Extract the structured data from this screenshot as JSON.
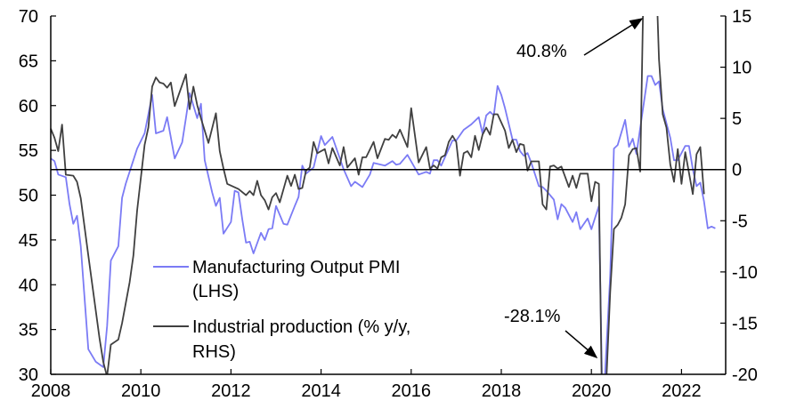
{
  "chart_data": {
    "type": "line",
    "title": "",
    "xlabel": "",
    "ylabel_left": "",
    "ylabel_right": "",
    "xlim": [
      "2008-01",
      "2022-12"
    ],
    "ylim_left": [
      30,
      70
    ],
    "ylim_right": [
      -20,
      15
    ],
    "x_ticks": [
      "2008",
      "2010",
      "2012",
      "2014",
      "2016",
      "2018",
      "2020",
      "2022"
    ],
    "y_ticks_left": [
      "70",
      "65",
      "60",
      "55",
      "50",
      "45",
      "40",
      "35",
      "30"
    ],
    "y_ticks_right": [
      "15",
      "10",
      "5",
      "0",
      "-5",
      "-10",
      "-15",
      "-20"
    ],
    "grid": false,
    "zero_line_right_axis": true,
    "legend_position": "bottom-left",
    "series": [
      {
        "name": "Manufacturing Output PMI (LHS)",
        "legend_lines": [
          "Manufacturing Output PMI",
          "(LHS)"
        ],
        "axis": "left",
        "color": "#7b7bf5",
        "points": [
          [
            "2008-01",
            54.1
          ],
          [
            "2008-02",
            53.8
          ],
          [
            "2008-03",
            52.3
          ],
          [
            "2008-05",
            52.0
          ],
          [
            "2008-06",
            49.0
          ],
          [
            "2008-07",
            46.8
          ],
          [
            "2008-08",
            47.7
          ],
          [
            "2008-09",
            44.3
          ],
          [
            "2008-11",
            32.8
          ],
          [
            "2009-01",
            31.4
          ],
          [
            "2009-03",
            30.8
          ],
          [
            "2009-04",
            35.4
          ],
          [
            "2009-05",
            42.7
          ],
          [
            "2009-07",
            44.3
          ],
          [
            "2009-08",
            49.7
          ],
          [
            "2009-09",
            51.3
          ],
          [
            "2009-11",
            53.9
          ],
          [
            "2009-12",
            55.2
          ],
          [
            "2010-02",
            56.9
          ],
          [
            "2010-04",
            61.2
          ],
          [
            "2010-05",
            56.9
          ],
          [
            "2010-07",
            57.2
          ],
          [
            "2010-08",
            58.7
          ],
          [
            "2010-10",
            54.1
          ],
          [
            "2010-12",
            55.9
          ],
          [
            "2011-01",
            58.6
          ],
          [
            "2011-02",
            61.4
          ],
          [
            "2011-04",
            58.6
          ],
          [
            "2011-05",
            60.2
          ],
          [
            "2011-06",
            53.9
          ],
          [
            "2011-08",
            50.3
          ],
          [
            "2011-09",
            48.8
          ],
          [
            "2011-10",
            49.7
          ],
          [
            "2011-11",
            45.7
          ],
          [
            "2012-01",
            47.0
          ],
          [
            "2012-02",
            50.5
          ],
          [
            "2012-03",
            50.3
          ],
          [
            "2012-04",
            47.3
          ],
          [
            "2012-05",
            44.7
          ],
          [
            "2012-06",
            44.8
          ],
          [
            "2012-07",
            43.5
          ],
          [
            "2012-09",
            45.8
          ],
          [
            "2012-10",
            45.0
          ],
          [
            "2012-11",
            46.2
          ],
          [
            "2012-12",
            46.3
          ],
          [
            "2013-01",
            48.8
          ],
          [
            "2013-03",
            46.8
          ],
          [
            "2013-04",
            46.7
          ],
          [
            "2013-06",
            48.8
          ],
          [
            "2013-07",
            49.8
          ],
          [
            "2013-08",
            53.3
          ],
          [
            "2013-09",
            52.4
          ],
          [
            "2013-11",
            53.1
          ],
          [
            "2014-01",
            56.6
          ],
          [
            "2014-02",
            55.6
          ],
          [
            "2014-04",
            56.5
          ],
          [
            "2014-07",
            52.9
          ],
          [
            "2014-09",
            51.0
          ],
          [
            "2014-10",
            51.5
          ],
          [
            "2014-12",
            50.9
          ],
          [
            "2015-02",
            52.3
          ],
          [
            "2015-03",
            53.6
          ],
          [
            "2015-06",
            53.3
          ],
          [
            "2015-08",
            53.8
          ],
          [
            "2015-09",
            53.4
          ],
          [
            "2015-10",
            53.5
          ],
          [
            "2015-12",
            54.5
          ],
          [
            "2016-03",
            52.3
          ],
          [
            "2016-05",
            52.6
          ],
          [
            "2016-06",
            52.4
          ],
          [
            "2016-07",
            53.9
          ],
          [
            "2016-08",
            53.9
          ],
          [
            "2016-09",
            53.3
          ],
          [
            "2016-12",
            56.1
          ],
          [
            "2017-01",
            56.1
          ],
          [
            "2017-03",
            57.3
          ],
          [
            "2017-05",
            57.9
          ],
          [
            "2017-07",
            58.7
          ],
          [
            "2017-08",
            56.9
          ],
          [
            "2017-09",
            58.9
          ],
          [
            "2017-10",
            59.3
          ],
          [
            "2017-11",
            58.9
          ],
          [
            "2017-12",
            62.2
          ],
          [
            "2018-01",
            61.2
          ],
          [
            "2018-02",
            59.7
          ],
          [
            "2018-04",
            56.2
          ],
          [
            "2018-05",
            56.2
          ],
          [
            "2018-06",
            54.9
          ],
          [
            "2018-07",
            54.4
          ],
          [
            "2018-08",
            54.7
          ],
          [
            "2018-09",
            53.6
          ],
          [
            "2018-11",
            51.0
          ],
          [
            "2018-12",
            50.9
          ],
          [
            "2019-01",
            50.5
          ],
          [
            "2019-03",
            49.5
          ],
          [
            "2019-04",
            47.3
          ],
          [
            "2019-05",
            49.0
          ],
          [
            "2019-06",
            48.6
          ],
          [
            "2019-08",
            47.0
          ],
          [
            "2019-09",
            48.1
          ],
          [
            "2019-10",
            46.2
          ],
          [
            "2019-12",
            47.4
          ],
          [
            "2020-01",
            46.2
          ],
          [
            "2020-03",
            48.8
          ],
          [
            "2020-04",
            25.0
          ],
          [
            "2020-06",
            41.0
          ],
          [
            "2020-07",
            55.2
          ],
          [
            "2020-08",
            55.6
          ],
          [
            "2020-10",
            58.4
          ],
          [
            "2020-11",
            55.4
          ],
          [
            "2020-12",
            56.3
          ],
          [
            "2021-01",
            54.6
          ],
          [
            "2021-04",
            63.3
          ],
          [
            "2021-05",
            63.3
          ],
          [
            "2021-06",
            62.3
          ],
          [
            "2021-07",
            62.7
          ],
          [
            "2021-08",
            59.6
          ],
          [
            "2021-10",
            56.4
          ],
          [
            "2021-11",
            53.9
          ],
          [
            "2021-12",
            53.9
          ],
          [
            "2022-02",
            55.5
          ],
          [
            "2022-03",
            55.5
          ],
          [
            "2022-04",
            52.9
          ],
          [
            "2022-05",
            51.0
          ],
          [
            "2022-06",
            51.4
          ],
          [
            "2022-07",
            49.3
          ],
          [
            "2022-08",
            46.3
          ],
          [
            "2022-09",
            46.5
          ],
          [
            "2022-10",
            46.3
          ]
        ]
      },
      {
        "name": "Industrial production (% y/y, RHS)",
        "legend_lines": [
          "Industrial production (% y/y,",
          "RHS)"
        ],
        "axis": "right",
        "color": "#404040",
        "points": [
          [
            "2008-01",
            4.0
          ],
          [
            "2008-02",
            3.1
          ],
          [
            "2008-03",
            1.8
          ],
          [
            "2008-04",
            4.4
          ],
          [
            "2008-05",
            -0.5
          ],
          [
            "2008-07",
            -0.6
          ],
          [
            "2008-08",
            -1.2
          ],
          [
            "2008-09",
            -2.8
          ],
          [
            "2008-11",
            -8.4
          ],
          [
            "2009-02",
            -16.5
          ],
          [
            "2009-03",
            -18.8
          ],
          [
            "2009-04",
            -20.2
          ],
          [
            "2009-05",
            -17.1
          ],
          [
            "2009-07",
            -16.6
          ],
          [
            "2009-08",
            -15.0
          ],
          [
            "2009-10",
            -11.0
          ],
          [
            "2009-11",
            -8.4
          ],
          [
            "2009-12",
            -4.0
          ],
          [
            "2010-02",
            2.4
          ],
          [
            "2010-03",
            4.1
          ],
          [
            "2010-04",
            8.1
          ],
          [
            "2010-05",
            9.0
          ],
          [
            "2010-06",
            8.5
          ],
          [
            "2010-07",
            8.4
          ],
          [
            "2010-08",
            8.0
          ],
          [
            "2010-09",
            8.5
          ],
          [
            "2010-10",
            6.2
          ],
          [
            "2011-01",
            9.3
          ],
          [
            "2011-02",
            5.9
          ],
          [
            "2011-03",
            8.1
          ],
          [
            "2011-04",
            6.3
          ],
          [
            "2011-05",
            5.0
          ],
          [
            "2011-07",
            2.6
          ],
          [
            "2011-09",
            5.5
          ],
          [
            "2011-10",
            1.8
          ],
          [
            "2011-11",
            0.1
          ],
          [
            "2011-12",
            -1.4
          ],
          [
            "2012-03",
            -1.9
          ],
          [
            "2012-05",
            -2.5
          ],
          [
            "2012-06",
            -2.1
          ],
          [
            "2012-07",
            -2.5
          ],
          [
            "2012-08",
            -1.1
          ],
          [
            "2012-09",
            -2.5
          ],
          [
            "2012-10",
            -3.0
          ],
          [
            "2012-11",
            -3.9
          ],
          [
            "2012-12",
            -2.7
          ],
          [
            "2013-01",
            -2.3
          ],
          [
            "2013-02",
            -3.2
          ],
          [
            "2013-04",
            -0.6
          ],
          [
            "2013-05",
            -1.6
          ],
          [
            "2013-06",
            -0.5
          ],
          [
            "2013-07",
            -1.9
          ],
          [
            "2013-08",
            -1.8
          ],
          [
            "2013-09",
            -0.1
          ],
          [
            "2013-10",
            0.2
          ],
          [
            "2013-11",
            2.7
          ],
          [
            "2013-12",
            1.6
          ],
          [
            "2014-02",
            2.0
          ],
          [
            "2014-03",
            0.6
          ],
          [
            "2014-04",
            2.1
          ],
          [
            "2014-06",
            0.4
          ],
          [
            "2014-07",
            2.2
          ],
          [
            "2014-08",
            0.2
          ],
          [
            "2014-10",
            1.1
          ],
          [
            "2014-11",
            -0.5
          ],
          [
            "2014-12",
            1.2
          ],
          [
            "2015-01",
            1.2
          ],
          [
            "2015-03",
            2.7
          ],
          [
            "2015-04",
            1.1
          ],
          [
            "2015-06",
            3.0
          ],
          [
            "2015-07",
            2.9
          ],
          [
            "2015-08",
            3.4
          ],
          [
            "2015-09",
            3.1
          ],
          [
            "2015-10",
            3.9
          ],
          [
            "2015-12",
            2.2
          ],
          [
            "2016-01",
            6.0
          ],
          [
            "2016-03",
            0.7
          ],
          [
            "2016-05",
            2.2
          ],
          [
            "2016-06",
            0.1
          ],
          [
            "2016-07",
            0.4
          ],
          [
            "2016-08",
            0.1
          ],
          [
            "2016-09",
            1.2
          ],
          [
            "2016-10",
            1.4
          ],
          [
            "2016-11",
            2.7
          ],
          [
            "2016-12",
            3.3
          ],
          [
            "2017-01",
            2.7
          ],
          [
            "2017-02",
            -0.6
          ],
          [
            "2017-03",
            1.6
          ],
          [
            "2017-04",
            1.8
          ],
          [
            "2017-05",
            1.2
          ],
          [
            "2017-06",
            3.3
          ],
          [
            "2017-07",
            1.9
          ],
          [
            "2017-08",
            3.4
          ],
          [
            "2017-09",
            4.1
          ],
          [
            "2017-10",
            3.4
          ],
          [
            "2017-11",
            5.4
          ],
          [
            "2017-12",
            5.4
          ],
          [
            "2018-02",
            3.8
          ],
          [
            "2018-03",
            2.1
          ],
          [
            "2018-04",
            2.9
          ],
          [
            "2018-05",
            1.7
          ],
          [
            "2018-06",
            2.5
          ],
          [
            "2018-07",
            2.4
          ],
          [
            "2018-08",
            -0.1
          ],
          [
            "2018-09",
            0.8
          ],
          [
            "2018-11",
            0.8
          ],
          [
            "2018-12",
            -3.4
          ],
          [
            "2019-01",
            -3.9
          ],
          [
            "2019-02",
            0.3
          ],
          [
            "2019-03",
            0.4
          ],
          [
            "2019-04",
            0.1
          ],
          [
            "2019-05",
            0.3
          ],
          [
            "2019-07",
            -1.7
          ],
          [
            "2019-08",
            -0.6
          ],
          [
            "2019-09",
            -1.8
          ],
          [
            "2019-10",
            -0.4
          ],
          [
            "2019-12",
            -0.4
          ],
          [
            "2020-01",
            -3.1
          ],
          [
            "2020-02",
            -1.2
          ],
          [
            "2020-03",
            -1.4
          ],
          [
            "2020-04",
            -28.1
          ],
          [
            "2020-05",
            -20.5
          ],
          [
            "2020-06",
            -12.0
          ],
          [
            "2020-07",
            -5.8
          ],
          [
            "2020-08",
            -5.4
          ],
          [
            "2020-09",
            -4.7
          ],
          [
            "2020-10",
            -3.4
          ],
          [
            "2020-11",
            1.4
          ],
          [
            "2020-12",
            2.0
          ],
          [
            "2021-01",
            2.1
          ],
          [
            "2021-02",
            -0.2
          ],
          [
            "2021-04",
            40.8
          ],
          [
            "2021-06",
            22.0
          ],
          [
            "2021-07",
            10.8
          ],
          [
            "2021-08",
            5.4
          ],
          [
            "2021-09",
            4.1
          ],
          [
            "2021-10",
            0.5
          ],
          [
            "2021-11",
            -1.2
          ],
          [
            "2021-12",
            2.0
          ],
          [
            "2022-01",
            -1.4
          ],
          [
            "2022-02",
            1.7
          ],
          [
            "2022-04",
            -2.4
          ],
          [
            "2022-05",
            1.5
          ],
          [
            "2022-06",
            2.2
          ],
          [
            "2022-07",
            -2.4
          ]
        ]
      }
    ],
    "annotations": [
      {
        "text": "40.8%",
        "series": "Industrial production (% y/y, RHS)",
        "date": "2021-04"
      },
      {
        "text": "-28.1%",
        "series": "Industrial production (% y/y, RHS)",
        "date": "2020-04"
      }
    ]
  }
}
